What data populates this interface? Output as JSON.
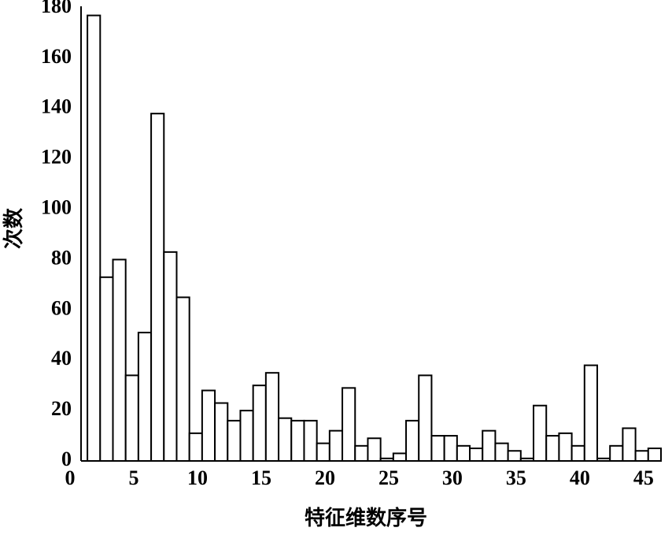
{
  "chart_data": {
    "type": "bar",
    "x_label": "特征维数序号",
    "y_label": "次数",
    "x": [
      1,
      2,
      3,
      4,
      5,
      6,
      7,
      8,
      9,
      10,
      11,
      12,
      13,
      14,
      15,
      16,
      17,
      18,
      19,
      20,
      21,
      22,
      23,
      24,
      25,
      26,
      27,
      28,
      29,
      30,
      31,
      32,
      33,
      34,
      35,
      36,
      37,
      38,
      39,
      40,
      41,
      42,
      43,
      44,
      45
    ],
    "values": [
      177,
      73,
      80,
      34,
      51,
      138,
      83,
      65,
      11,
      28,
      23,
      16,
      20,
      30,
      35,
      17,
      16,
      16,
      7,
      12,
      29,
      6,
      9,
      1,
      3,
      16,
      34,
      10,
      10,
      6,
      5,
      12,
      7,
      4,
      1,
      22,
      10,
      11,
      6,
      38,
      1,
      6,
      13,
      4,
      5
    ],
    "xlim": [
      0,
      45.5
    ],
    "xticks": [
      0,
      5,
      10,
      15,
      20,
      25,
      30,
      35,
      40,
      45
    ],
    "ylim": [
      0,
      180
    ],
    "yticks": [
      0,
      20,
      40,
      60,
      80,
      100,
      120,
      140,
      160,
      180
    ],
    "color": "#ffffff",
    "edgecolor": "#000000"
  }
}
